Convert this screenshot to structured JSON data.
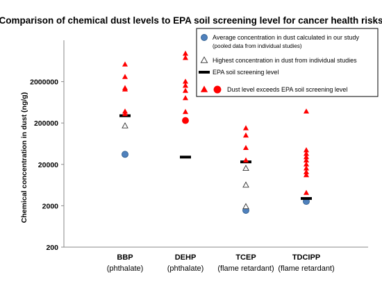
{
  "chart_data": {
    "type": "scatter",
    "title": "Comparison of chemical dust levels to EPA soil screening level for cancer health risks",
    "ylabel": "Chemical concentration in dust (ng/g)",
    "xlabel": "",
    "yscale": "log",
    "ylim": [
      200,
      20000000
    ],
    "yticks": [
      "2000000",
      "200000",
      "20000",
      "2000",
      "200"
    ],
    "ytick_values": [
      2000000,
      200000,
      20000,
      2000,
      200
    ],
    "grid": false,
    "legend_position": "top-right",
    "categories": [
      {
        "name": "BBP",
        "sub": "(phthalate)"
      },
      {
        "name": "DEHP",
        "sub": "(phthalate)"
      },
      {
        "name": "TCEP",
        "sub": "(flame retardant)"
      },
      {
        "name": "TDCIPP",
        "sub": "(flame retardant)"
      }
    ],
    "legend": [
      {
        "marker": "circle-blue",
        "text": "Average concentration in dust calculated in our study",
        "text2": "(pooled data from individual studies)"
      },
      {
        "marker": "triangle-open",
        "text": "Highest concentration in dust from individual studies"
      },
      {
        "marker": "bar-black",
        "text": "EPA soil screening level"
      },
      {
        "marker": "triangle-circle-red",
        "text": "Dust level exceeds EPA soil screening level"
      }
    ],
    "series": [
      {
        "name": "Average concentration in dust calculated in our study",
        "marker": "circle",
        "color": "#4f81bd",
        "values": [
          35000,
          null,
          1550,
          2550
        ]
      },
      {
        "name": "Dust level exceeds EPA soil screening level",
        "marker": "circle",
        "color": "#ff0000",
        "values": [
          null,
          230000,
          null,
          null
        ]
      },
      {
        "name": "Highest concentration in dust from individual studies",
        "marker": "triangle-open",
        "color": "#ffffff",
        "points": [
          [
            0,
            170000
          ],
          [
            2,
            16000
          ],
          [
            2,
            6300
          ],
          [
            2,
            1900
          ]
        ]
      },
      {
        "name": "EPA soil screening level",
        "marker": "bar",
        "color": "#000000",
        "values": [
          300000,
          30000,
          23000,
          3000
        ]
      },
      {
        "name": "Dust level exceeds EPA soil screening level",
        "marker": "triangle",
        "color": "#ff0000",
        "points": [
          [
            0,
            5200000
          ],
          [
            0,
            2600000
          ],
          [
            0,
            1400000
          ],
          [
            0,
            1300000
          ],
          [
            0,
            380000
          ],
          [
            0,
            330000
          ],
          [
            1,
            9500000
          ],
          [
            1,
            7500000
          ],
          [
            1,
            2000000
          ],
          [
            1,
            1600000
          ],
          [
            1,
            1200000
          ],
          [
            1,
            800000
          ],
          [
            1,
            370000
          ],
          [
            2,
            150000
          ],
          [
            2,
            100000
          ],
          [
            2,
            50000
          ],
          [
            2,
            25000
          ],
          [
            3,
            380000
          ],
          [
            3,
            44000
          ],
          [
            3,
            36000
          ],
          [
            3,
            30000
          ],
          [
            3,
            25000
          ],
          [
            3,
            20000
          ],
          [
            3,
            16000
          ],
          [
            3,
            13000
          ],
          [
            3,
            11000
          ],
          [
            3,
            4100
          ]
        ]
      }
    ]
  }
}
